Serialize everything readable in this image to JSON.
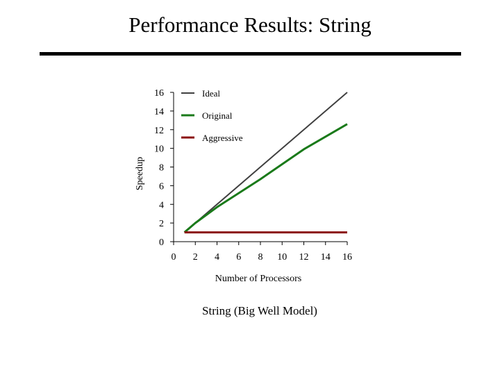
{
  "slide": {
    "title": "Performance Results: String"
  },
  "chart_data": {
    "type": "line",
    "title": "String (Big Well Model)",
    "xlabel": "Number of Processors",
    "ylabel": "Speedup",
    "xlim": [
      0,
      16
    ],
    "ylim": [
      0,
      16
    ],
    "xticks": [
      0,
      2,
      4,
      6,
      8,
      10,
      12,
      14,
      16
    ],
    "yticks": [
      0,
      2,
      4,
      6,
      8,
      10,
      12,
      14,
      16
    ],
    "grid": false,
    "legend_position": "top-left",
    "series": [
      {
        "name": "Ideal",
        "color": "#404040",
        "x": [
          1,
          16
        ],
        "y": [
          1,
          16
        ]
      },
      {
        "name": "Original",
        "color": "#1a7a1a",
        "x": [
          1,
          2,
          4,
          8,
          12,
          16
        ],
        "y": [
          1,
          2,
          3.7,
          6.7,
          9.9,
          12.6
        ]
      },
      {
        "name": "Aggressive",
        "color": "#8b1010",
        "x": [
          1,
          16
        ],
        "y": [
          1,
          1
        ]
      }
    ]
  }
}
